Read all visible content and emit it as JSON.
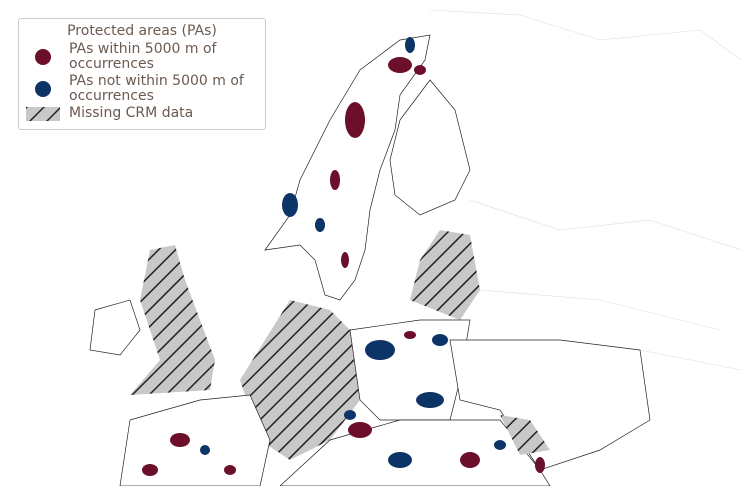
{
  "legend": {
    "title": "Protected areas (PAs)",
    "items": [
      {
        "label": "PAs within 5000 m of occurrences"
      },
      {
        "label": "PAs not within 5000 m of occurrences"
      },
      {
        "label": "Missing CRM data"
      }
    ]
  }
}
